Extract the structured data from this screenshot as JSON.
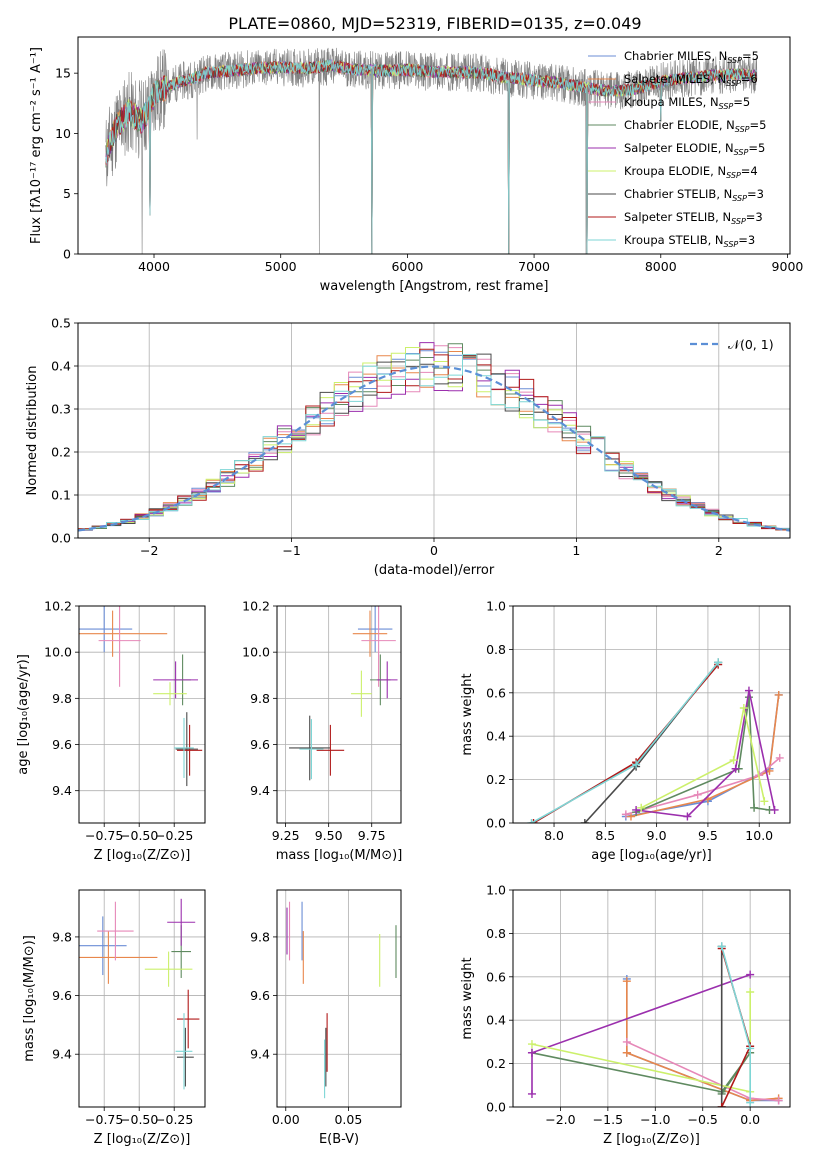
{
  "figure": {
    "title": "PLATE=0860, MJD=52319, FIBERID=0135, z=0.049"
  },
  "palette": [
    "#6b8ed6",
    "#e8874c",
    "#e688b8",
    "#5f8a60",
    "#9b2fad",
    "#ccf06b",
    "#4a4a4a",
    "#b01919",
    "#7ed6d6"
  ],
  "chart_data": [
    {
      "id": "spectrum",
      "type": "line",
      "xlabel": "wavelength [Angstrom, rest frame]",
      "ylabel": "Flux [fλ10⁻¹⁷ erg cm⁻² s⁻¹ A⁻¹]",
      "xlim": [
        3400,
        9020
      ],
      "ylim": [
        0,
        18
      ],
      "xticks": [
        4000,
        5000,
        6000,
        7000,
        8000,
        9000
      ],
      "yticks": [
        0,
        5,
        10,
        15
      ],
      "data_color": "#808080",
      "data_envelope": {
        "x": [
          3620,
          3700,
          3800,
          3900,
          3960,
          4000,
          4100,
          4200,
          4300,
          4400,
          4600,
          4800,
          5000,
          5200,
          5400,
          5600,
          5800,
          6000,
          6200,
          6400,
          6600,
          6800,
          7000,
          7200,
          7400,
          7600,
          7800,
          8000,
          8200,
          8400,
          8600,
          8760
        ],
        "y": [
          8.2,
          10.5,
          11.8,
          11.0,
          12.0,
          13.2,
          13.8,
          14.3,
          14.5,
          15.0,
          15.2,
          15.4,
          15.5,
          15.4,
          15.6,
          15.3,
          15.2,
          15.3,
          15.1,
          15.1,
          15.0,
          14.6,
          14.4,
          14.2,
          13.8,
          13.5,
          13.7,
          14.3,
          14.6,
          14.8,
          14.9,
          14.8
        ]
      },
      "data_dips": [
        {
          "x": 3905,
          "y": 0.0
        },
        {
          "x": 4340,
          "y": 9.5
        },
        {
          "x": 5305,
          "y": 0.0
        },
        {
          "x": 6800,
          "y": 0.0
        },
        {
          "x": 7410,
          "y": 0.0
        }
      ],
      "model_dips": [
        {
          "x": 3970,
          "y": 3.2
        },
        {
          "x": 5720,
          "y": 0.0
        },
        {
          "x": 6800,
          "y": 0.0
        },
        {
          "x": 7420,
          "y": 0.0
        },
        {
          "x": 8000,
          "y": 11.0
        }
      ],
      "series": [
        {
          "name": "Chabrier MILES, N",
          "sub": "SSP",
          "suffix": "=5"
        },
        {
          "name": "Salpeter MILES, N",
          "sub": "SSP",
          "suffix": "=6"
        },
        {
          "name": "Kroupa MILES, N",
          "sub": "SSP",
          "suffix": "=5"
        },
        {
          "name": "Chabrier ELODIE, N",
          "sub": "SSP",
          "suffix": "=5"
        },
        {
          "name": "Salpeter ELODIE, N",
          "sub": "SSP",
          "suffix": "=5"
        },
        {
          "name": "Kroupa ELODIE, N",
          "sub": "SSP",
          "suffix": "=4"
        },
        {
          "name": "Chabrier STELIB, N",
          "sub": "SSP",
          "suffix": "=3"
        },
        {
          "name": "Salpeter STELIB, N",
          "sub": "SSP",
          "suffix": "=3"
        },
        {
          "name": "Kroupa STELIB, N",
          "sub": "SSP",
          "suffix": "=3"
        }
      ]
    },
    {
      "id": "residuals",
      "type": "histogram",
      "xlabel": "(data-model)/error",
      "ylabel": "Normed distribution",
      "xlim": [
        -2.5,
        2.5
      ],
      "ylim": [
        0,
        0.5
      ],
      "xticks": [
        -2,
        -1,
        0,
        1,
        2
      ],
      "yticks": [
        0.0,
        0.1,
        0.2,
        0.3,
        0.4,
        0.5
      ],
      "bin_width": 0.1,
      "legend": "𝒩(0, 1)",
      "reference": "gaussian"
    },
    {
      "id": "age_vs_Z",
      "type": "errorbar",
      "xlabel": "Z [log₁₀(Z/Z⊙)]",
      "ylabel": "age  [log₁₀(age/yr)]",
      "xlim": [
        -0.93,
        -0.03
      ],
      "ylim": [
        9.26,
        10.2
      ],
      "xticks": [
        -0.75,
        -0.5,
        -0.25
      ],
      "yticks": [
        9.4,
        9.6,
        9.8,
        10.0,
        10.2
      ],
      "points": [
        {
          "x": -0.75,
          "xe": 0.2,
          "y": 10.1,
          "ye": 0.1,
          "c": 0
        },
        {
          "x": -0.69,
          "xe": 0.39,
          "y": 10.08,
          "ye": 0.1,
          "c": 1
        },
        {
          "x": -0.64,
          "xe": 0.15,
          "y": 10.05,
          "ye": 0.2,
          "c": 2
        },
        {
          "x": -0.19,
          "xe": 0.06,
          "y": 9.88,
          "ye": 0.11,
          "c": 3
        },
        {
          "x": -0.24,
          "xe": 0.16,
          "y": 9.88,
          "ye": 0.08,
          "c": 4
        },
        {
          "x": -0.28,
          "xe": 0.12,
          "y": 9.82,
          "ye": 0.05,
          "c": 5
        },
        {
          "x": -0.16,
          "xe": 0.08,
          "y": 9.58,
          "ye": 0.16,
          "c": 6
        },
        {
          "x": -0.14,
          "xe": 0.09,
          "y": 9.575,
          "ye": 0.11,
          "c": 7
        },
        {
          "x": -0.18,
          "xe": 0.07,
          "y": 9.585,
          "ye": 0.13,
          "c": 8
        }
      ]
    },
    {
      "id": "age_vs_mass",
      "type": "errorbar",
      "xlabel": "mass [log₁₀(M/M⊙)]",
      "ylabel": "",
      "xlim": [
        9.2,
        9.92
      ],
      "ylim": [
        9.26,
        10.2
      ],
      "xticks": [
        9.25,
        9.5,
        9.75
      ],
      "yticks": [
        9.4,
        9.6,
        9.8,
        10.0,
        10.2
      ],
      "points": [
        {
          "x": 9.77,
          "xe": 0.1,
          "y": 10.1,
          "ye": 0.1,
          "c": 0
        },
        {
          "x": 9.74,
          "xe": 0.1,
          "y": 10.08,
          "ye": 0.1,
          "c": 1
        },
        {
          "x": 9.79,
          "xe": 0.1,
          "y": 10.05,
          "ye": 0.2,
          "c": 2
        },
        {
          "x": 9.8,
          "xe": 0.06,
          "y": 9.88,
          "ye": 0.11,
          "c": 3
        },
        {
          "x": 9.84,
          "xe": 0.06,
          "y": 9.88,
          "ye": 0.08,
          "c": 4
        },
        {
          "x": 9.69,
          "xe": 0.06,
          "y": 9.82,
          "ye": 0.1,
          "c": 5
        },
        {
          "x": 9.39,
          "xe": 0.12,
          "y": 9.585,
          "ye": 0.14,
          "c": 6
        },
        {
          "x": 9.51,
          "xe": 0.08,
          "y": 9.575,
          "ye": 0.11,
          "c": 7
        },
        {
          "x": 9.4,
          "xe": 0.07,
          "y": 9.58,
          "ye": 0.13,
          "c": 8
        }
      ]
    },
    {
      "id": "mw_vs_age",
      "type": "line",
      "xlabel": "age  [log₁₀(age/yr)]",
      "ylabel": "mass weight",
      "xlim": [
        7.6,
        10.3
      ],
      "ylim": [
        0.0,
        1.0
      ],
      "xticks": [
        8.0,
        8.5,
        9.0,
        9.5,
        10.0
      ],
      "yticks": [
        0.0,
        0.2,
        0.4,
        0.6,
        0.8,
        1.0
      ],
      "series": [
        {
          "c": 0,
          "x": [
            8.7,
            9.5,
            10.1,
            10.19
          ],
          "y": [
            0.03,
            0.1,
            0.25,
            0.59
          ]
        },
        {
          "c": 1,
          "x": [
            8.75,
            9.5,
            10.1,
            10.19
          ],
          "y": [
            0.03,
            0.11,
            0.24,
            0.59
          ]
        },
        {
          "c": 2,
          "x": [
            8.7,
            9.4,
            10.0,
            10.2
          ],
          "y": [
            0.04,
            0.13,
            0.22,
            0.3
          ]
        },
        {
          "c": 3,
          "x": [
            8.8,
            9.8,
            9.9,
            9.95,
            10.1
          ],
          "y": [
            0.05,
            0.25,
            0.58,
            0.07,
            0.06
          ]
        },
        {
          "c": 4,
          "x": [
            8.8,
            9.3,
            9.77,
            9.9,
            10.15
          ],
          "y": [
            0.06,
            0.03,
            0.25,
            0.61,
            0.06
          ]
        },
        {
          "c": 5,
          "x": [
            8.85,
            9.75,
            9.85,
            10.05
          ],
          "y": [
            0.07,
            0.29,
            0.53,
            0.1
          ]
        },
        {
          "c": 6,
          "x": [
            8.3,
            8.8,
            9.6
          ],
          "y": [
            0.0,
            0.26,
            0.74
          ]
        },
        {
          "c": 7,
          "x": [
            7.8,
            8.8,
            9.6
          ],
          "y": [
            0.0,
            0.28,
            0.73
          ]
        },
        {
          "c": 8,
          "x": [
            7.78,
            8.8,
            9.6
          ],
          "y": [
            0.0,
            0.27,
            0.74
          ]
        }
      ]
    },
    {
      "id": "mass_vs_Z",
      "type": "errorbar",
      "xlabel": "Z [log₁₀(Z/Z⊙)]",
      "ylabel": "mass [log₁₀(M/M⊙)]",
      "xlim": [
        -0.93,
        -0.03
      ],
      "ylim": [
        9.22,
        9.96
      ],
      "xticks": [
        -0.75,
        -0.5,
        -0.25
      ],
      "yticks": [
        9.4,
        9.6,
        9.8
      ],
      "points": [
        {
          "x": -0.76,
          "xe": 0.17,
          "y": 9.77,
          "ye": 0.1,
          "c": 0
        },
        {
          "x": -0.72,
          "xe": 0.35,
          "y": 9.73,
          "ye": 0.09,
          "c": 1
        },
        {
          "x": -0.67,
          "xe": 0.13,
          "y": 9.82,
          "ye": 0.1,
          "c": 2
        },
        {
          "x": -0.2,
          "xe": 0.07,
          "y": 9.75,
          "ye": 0.09,
          "c": 3
        },
        {
          "x": -0.2,
          "xe": 0.1,
          "y": 9.85,
          "ye": 0.08,
          "c": 4
        },
        {
          "x": -0.29,
          "xe": 0.17,
          "y": 9.69,
          "ye": 0.06,
          "c": 5
        },
        {
          "x": -0.17,
          "xe": 0.06,
          "y": 9.39,
          "ye": 0.1,
          "c": 6
        },
        {
          "x": -0.15,
          "xe": 0.08,
          "y": 9.52,
          "ye": 0.1,
          "c": 7
        },
        {
          "x": -0.18,
          "xe": 0.06,
          "y": 9.41,
          "ye": 0.13,
          "c": 8
        }
      ]
    },
    {
      "id": "mass_vs_ebv",
      "type": "errorbar",
      "xlabel": "E(B-V)",
      "ylabel": "",
      "xlim": [
        -0.007,
        0.092
      ],
      "ylim": [
        9.22,
        9.96
      ],
      "xticks": [
        0.0,
        0.05
      ],
      "yticks": [
        9.4,
        9.6,
        9.8
      ],
      "points": [
        {
          "x": 0.013,
          "xe": 0,
          "y": 9.82,
          "ye": 0.1,
          "c": 0
        },
        {
          "x": 0.014,
          "xe": 0,
          "y": 9.73,
          "ye": 0.09,
          "c": 1
        },
        {
          "x": 0.003,
          "xe": 0,
          "y": 9.82,
          "ye": 0.1,
          "c": 2
        },
        {
          "x": 0.088,
          "xe": 0,
          "y": 9.75,
          "ye": 0.09,
          "c": 3
        },
        {
          "x": 0.001,
          "xe": 0,
          "y": 9.82,
          "ye": 0.08,
          "c": 4
        },
        {
          "x": 0.075,
          "xe": 0,
          "y": 9.72,
          "ye": 0.09,
          "c": 5
        },
        {
          "x": 0.032,
          "xe": 0,
          "y": 9.39,
          "ye": 0.1,
          "c": 6
        },
        {
          "x": 0.033,
          "xe": 0,
          "y": 9.44,
          "ye": 0.1,
          "c": 7
        },
        {
          "x": 0.031,
          "xe": 0,
          "y": 9.35,
          "ye": 0.1,
          "c": 8
        }
      ]
    },
    {
      "id": "mw_vs_Z",
      "type": "line",
      "xlabel": "Z [log₁₀(Z/Z⊙)]",
      "ylabel": "mass weight",
      "xlim": [
        -2.5,
        0.42
      ],
      "ylim": [
        0.0,
        1.0
      ],
      "xticks": [
        -2.0,
        -1.5,
        -1.0,
        -0.5,
        0.0
      ],
      "yticks": [
        0.0,
        0.2,
        0.4,
        0.6,
        0.8,
        1.0
      ],
      "series": [
        {
          "c": 0,
          "x": [
            -1.3,
            -1.3,
            0.0,
            0.3
          ],
          "y": [
            0.59,
            0.25,
            0.03,
            0.03
          ]
        },
        {
          "c": 1,
          "x": [
            -1.3,
            -1.3,
            0.0,
            0.3
          ],
          "y": [
            0.58,
            0.25,
            0.03,
            0.04
          ]
        },
        {
          "c": 2,
          "x": [
            -1.3,
            0.0,
            0.3
          ],
          "y": [
            0.3,
            0.04,
            0.03
          ]
        },
        {
          "c": 3,
          "x": [
            -2.3,
            -0.3,
            0.0,
            -0.3
          ],
          "y": [
            0.25,
            0.07,
            0.25,
            0.06
          ]
        },
        {
          "c": 4,
          "x": [
            -2.3,
            -2.3,
            0.0
          ],
          "y": [
            0.06,
            0.25,
            0.61
          ]
        },
        {
          "c": 5,
          "x": [
            -2.3,
            0.0,
            0.0
          ],
          "y": [
            0.29,
            0.07,
            0.53
          ]
        },
        {
          "c": 6,
          "x": [
            -0.3,
            -0.3
          ],
          "y": [
            0.0,
            0.74
          ]
        },
        {
          "c": 7,
          "x": [
            -0.3,
            0.0,
            -0.3
          ],
          "y": [
            0.0,
            0.28,
            0.73
          ]
        },
        {
          "c": 8,
          "x": [
            -0.3,
            0.0,
            0.0
          ],
          "y": [
            0.74,
            0.27,
            0.02
          ]
        }
      ]
    }
  ]
}
